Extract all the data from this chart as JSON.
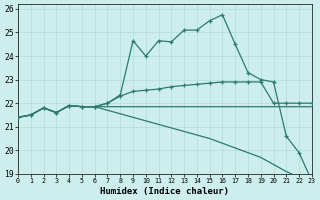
{
  "x": [
    0,
    1,
    2,
    3,
    4,
    5,
    6,
    7,
    8,
    9,
    10,
    11,
    12,
    13,
    14,
    15,
    16,
    17,
    18,
    19,
    20,
    21,
    22,
    23
  ],
  "line_top": [
    21.4,
    21.5,
    21.8,
    21.6,
    21.9,
    21.85,
    21.85,
    22.0,
    22.35,
    24.65,
    24.0,
    24.65,
    24.6,
    25.1,
    25.1,
    25.5,
    25.75,
    24.5,
    23.3,
    23.0,
    22.9,
    20.6,
    19.9,
    18.7
  ],
  "line_mid": [
    21.4,
    21.5,
    21.8,
    21.6,
    21.9,
    21.85,
    21.85,
    22.0,
    22.3,
    22.5,
    22.55,
    22.6,
    22.7,
    22.75,
    22.8,
    22.85,
    22.9,
    22.9,
    22.9,
    22.9,
    22.0,
    22.0,
    22.0,
    22.0
  ],
  "line_flat": [
    21.4,
    21.5,
    21.8,
    21.6,
    21.9,
    21.85,
    21.85,
    21.85,
    21.85,
    21.85,
    21.85,
    21.85,
    21.85,
    21.85,
    21.85,
    21.85,
    21.85,
    21.85,
    21.85,
    21.85,
    21.85,
    21.85,
    21.85,
    21.85
  ],
  "line_diag": [
    21.4,
    21.5,
    21.8,
    21.6,
    21.9,
    21.85,
    21.85,
    21.7,
    21.55,
    21.4,
    21.25,
    21.1,
    20.95,
    20.8,
    20.65,
    20.5,
    20.3,
    20.1,
    19.9,
    19.7,
    19.4,
    19.1,
    18.85,
    18.7
  ],
  "color": "#2d7a6e",
  "bg_color": "#cdeeed",
  "grid_color": "#b0ddd8",
  "xlabel": "Humidex (Indice chaleur)",
  "ylim": [
    19,
    26.2
  ],
  "xlim": [
    0,
    23
  ],
  "yticks": [
    19,
    20,
    21,
    22,
    23,
    24,
    25,
    26
  ],
  "xticks": [
    0,
    1,
    2,
    3,
    4,
    5,
    6,
    7,
    8,
    9,
    10,
    11,
    12,
    13,
    14,
    15,
    16,
    17,
    18,
    19,
    20,
    21,
    22,
    23
  ]
}
